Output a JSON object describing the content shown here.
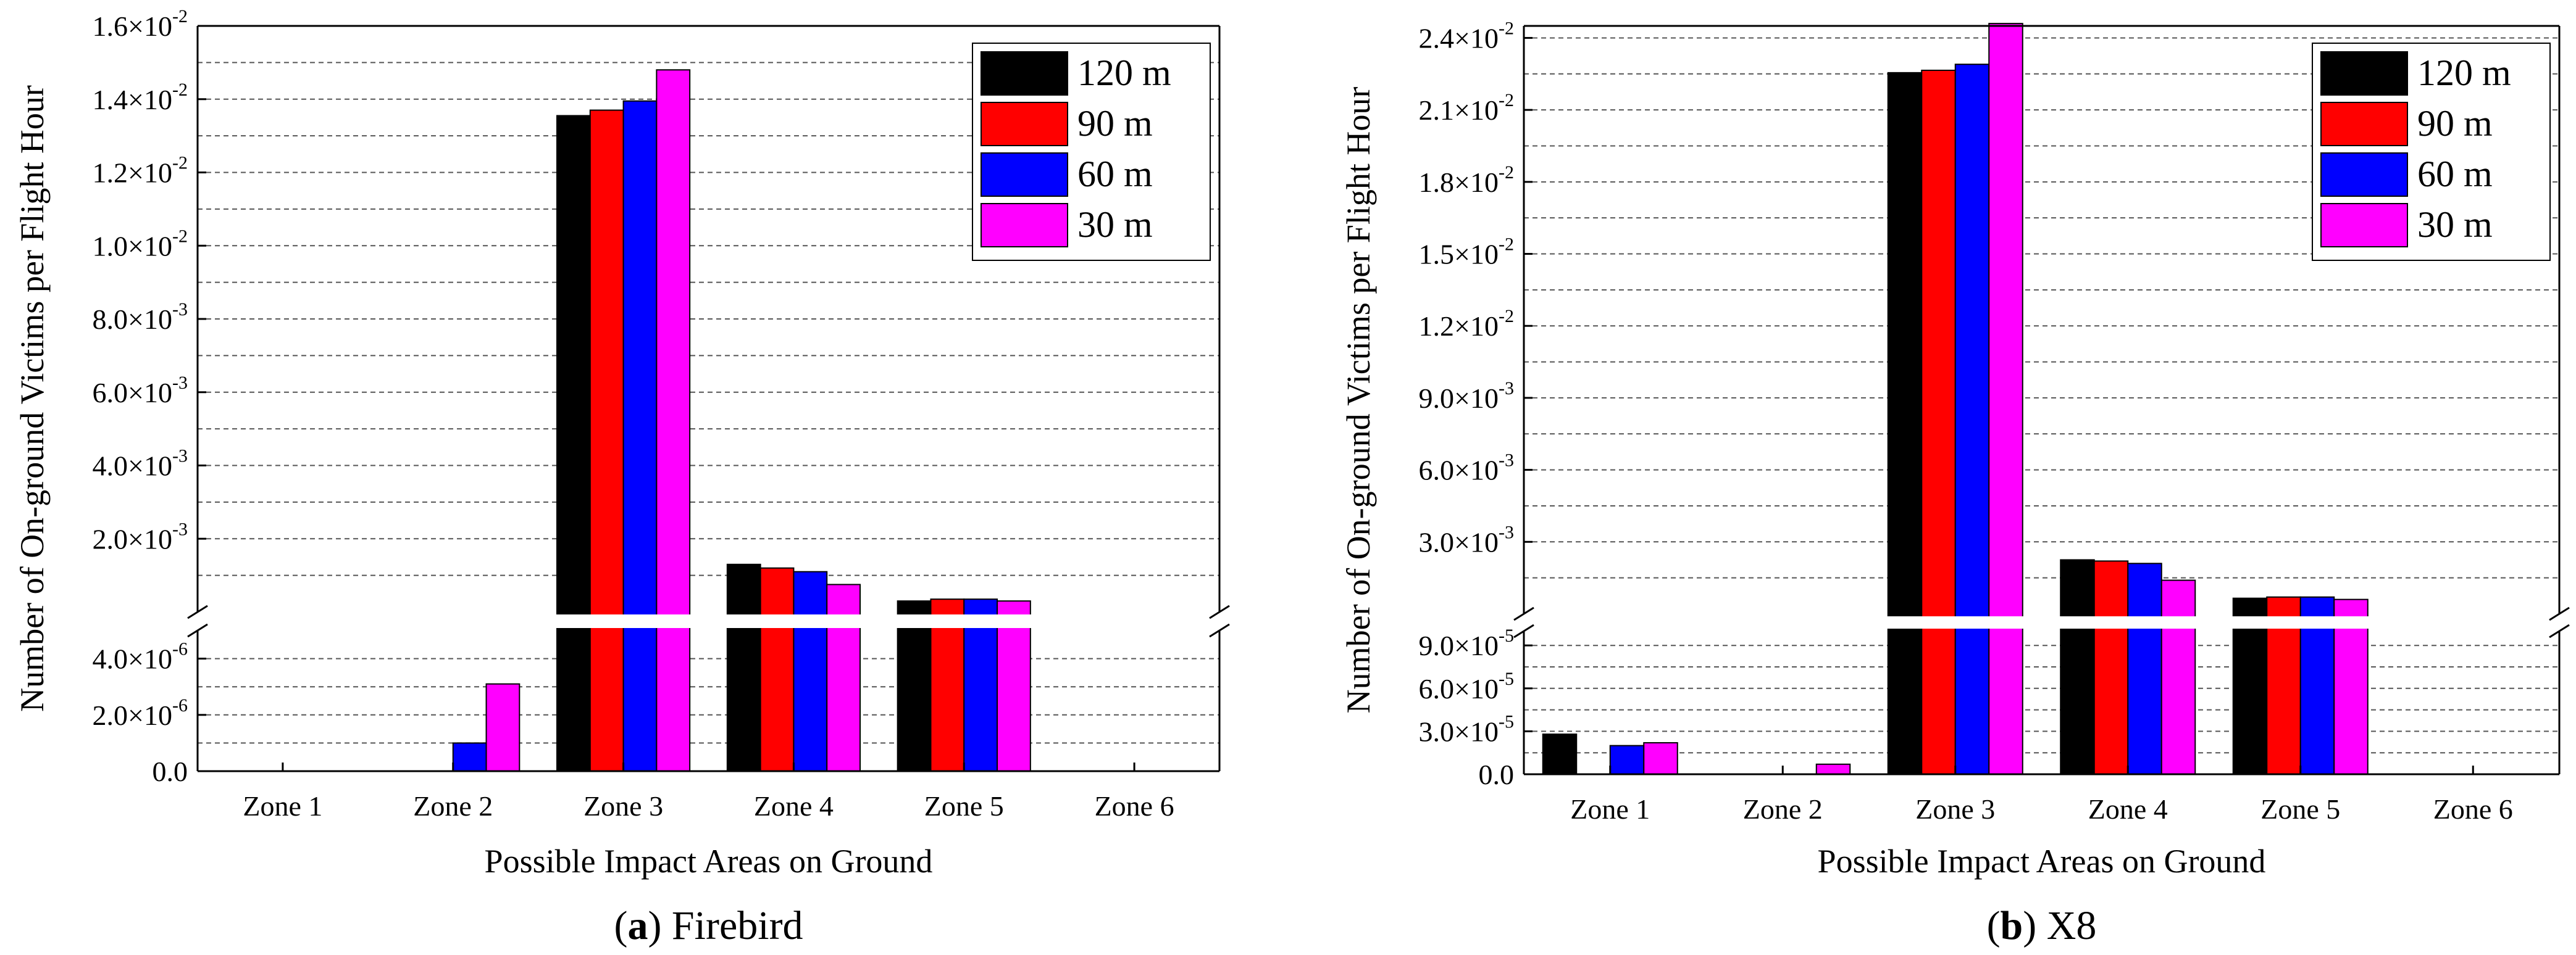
{
  "chart_data": [
    {
      "type": "bar",
      "panel_letter": "a",
      "panel_name": "Firebird",
      "xlabel": "Possible Impact Areas on Ground",
      "ylabel": "Number of On-ground Victims per Flight Hour",
      "categories": [
        "Zone 1",
        "Zone 2",
        "Zone 3",
        "Zone 4",
        "Zone 5",
        "Zone 6"
      ],
      "broken_axis": true,
      "lower_ylim": [
        0,
        5e-06
      ],
      "upper_ylim": [
        0,
        0.016
      ],
      "lower_ticks": [
        {
          "value": 0,
          "mant": "0.0",
          "exp": ""
        },
        {
          "value": 2e-06,
          "mant": "2.0×10",
          "exp": "-6"
        },
        {
          "value": 4e-06,
          "mant": "4.0×10",
          "exp": "-6"
        }
      ],
      "upper_ticks": [
        {
          "value": 0.002,
          "mant": "2.0×10",
          "exp": "-3"
        },
        {
          "value": 0.004,
          "mant": "4.0×10",
          "exp": "-3"
        },
        {
          "value": 0.006,
          "mant": "6.0×10",
          "exp": "-3"
        },
        {
          "value": 0.008,
          "mant": "8.0×10",
          "exp": "-3"
        },
        {
          "value": 0.01,
          "mant": "1.0×10",
          "exp": "-2"
        },
        {
          "value": 0.012,
          "mant": "1.2×10",
          "exp": "-2"
        },
        {
          "value": 0.014,
          "mant": "1.4×10",
          "exp": "-2"
        },
        {
          "value": 0.016,
          "mant": "1.6×10",
          "exp": "-2"
        }
      ],
      "series": [
        {
          "name": "120 m",
          "color": "#000000",
          "values": [
            0,
            0,
            0.01355,
            0.0013,
            0.0003,
            0
          ]
        },
        {
          "name": "90 m",
          "color": "#ff0000",
          "values": [
            0,
            0,
            0.0137,
            0.0012,
            0.00035,
            0
          ]
        },
        {
          "name": "60 m",
          "color": "#0000ff",
          "values": [
            0,
            1e-06,
            0.01395,
            0.0011,
            0.00035,
            0
          ]
        },
        {
          "name": "30 m",
          "color": "#ff00ff",
          "values": [
            0,
            3.1e-06,
            0.0148,
            0.00075,
            0.0003,
            0
          ]
        }
      ]
    },
    {
      "type": "bar",
      "panel_letter": "b",
      "panel_name": "X8",
      "xlabel": "Possible Impact Areas on Ground",
      "ylabel": "Number of On-ground Victims per Flight Hour",
      "categories": [
        "Zone 1",
        "Zone 2",
        "Zone 3",
        "Zone 4",
        "Zone 5",
        "Zone 6"
      ],
      "broken_axis": true,
      "lower_ylim": [
        0,
        0.0001
      ],
      "upper_ylim": [
        0,
        0.0245
      ],
      "lower_ticks": [
        {
          "value": 0,
          "mant": "0.0",
          "exp": ""
        },
        {
          "value": 3e-05,
          "mant": "3.0×10",
          "exp": "-5"
        },
        {
          "value": 6e-05,
          "mant": "6.0×10",
          "exp": "-5"
        },
        {
          "value": 9e-05,
          "mant": "9.0×10",
          "exp": "-5"
        }
      ],
      "upper_ticks": [
        {
          "value": 0.003,
          "mant": "3.0×10",
          "exp": "-3"
        },
        {
          "value": 0.006,
          "mant": "6.0×10",
          "exp": "-3"
        },
        {
          "value": 0.009,
          "mant": "9.0×10",
          "exp": "-3"
        },
        {
          "value": 0.012,
          "mant": "1.2×10",
          "exp": "-2"
        },
        {
          "value": 0.015,
          "mant": "1.5×10",
          "exp": "-2"
        },
        {
          "value": 0.018,
          "mant": "1.8×10",
          "exp": "-2"
        },
        {
          "value": 0.021,
          "mant": "2.1×10",
          "exp": "-2"
        },
        {
          "value": 0.024,
          "mant": "2.4×10",
          "exp": "-2"
        }
      ],
      "series": [
        {
          "name": "120 m",
          "color": "#000000",
          "values": [
            2.8e-05,
            0,
            0.02255,
            0.00225,
            0.00065,
            0
          ]
        },
        {
          "name": "90 m",
          "color": "#ff0000",
          "values": [
            0,
            0,
            0.02265,
            0.0022,
            0.0007,
            0
          ]
        },
        {
          "name": "60 m",
          "color": "#0000ff",
          "values": [
            2e-05,
            0,
            0.0229,
            0.0021,
            0.0007,
            0
          ]
        },
        {
          "name": "30 m",
          "color": "#ff00ff",
          "values": [
            2.2e-05,
            7e-06,
            0.0246,
            0.0014,
            0.0006,
            0
          ]
        }
      ]
    }
  ]
}
